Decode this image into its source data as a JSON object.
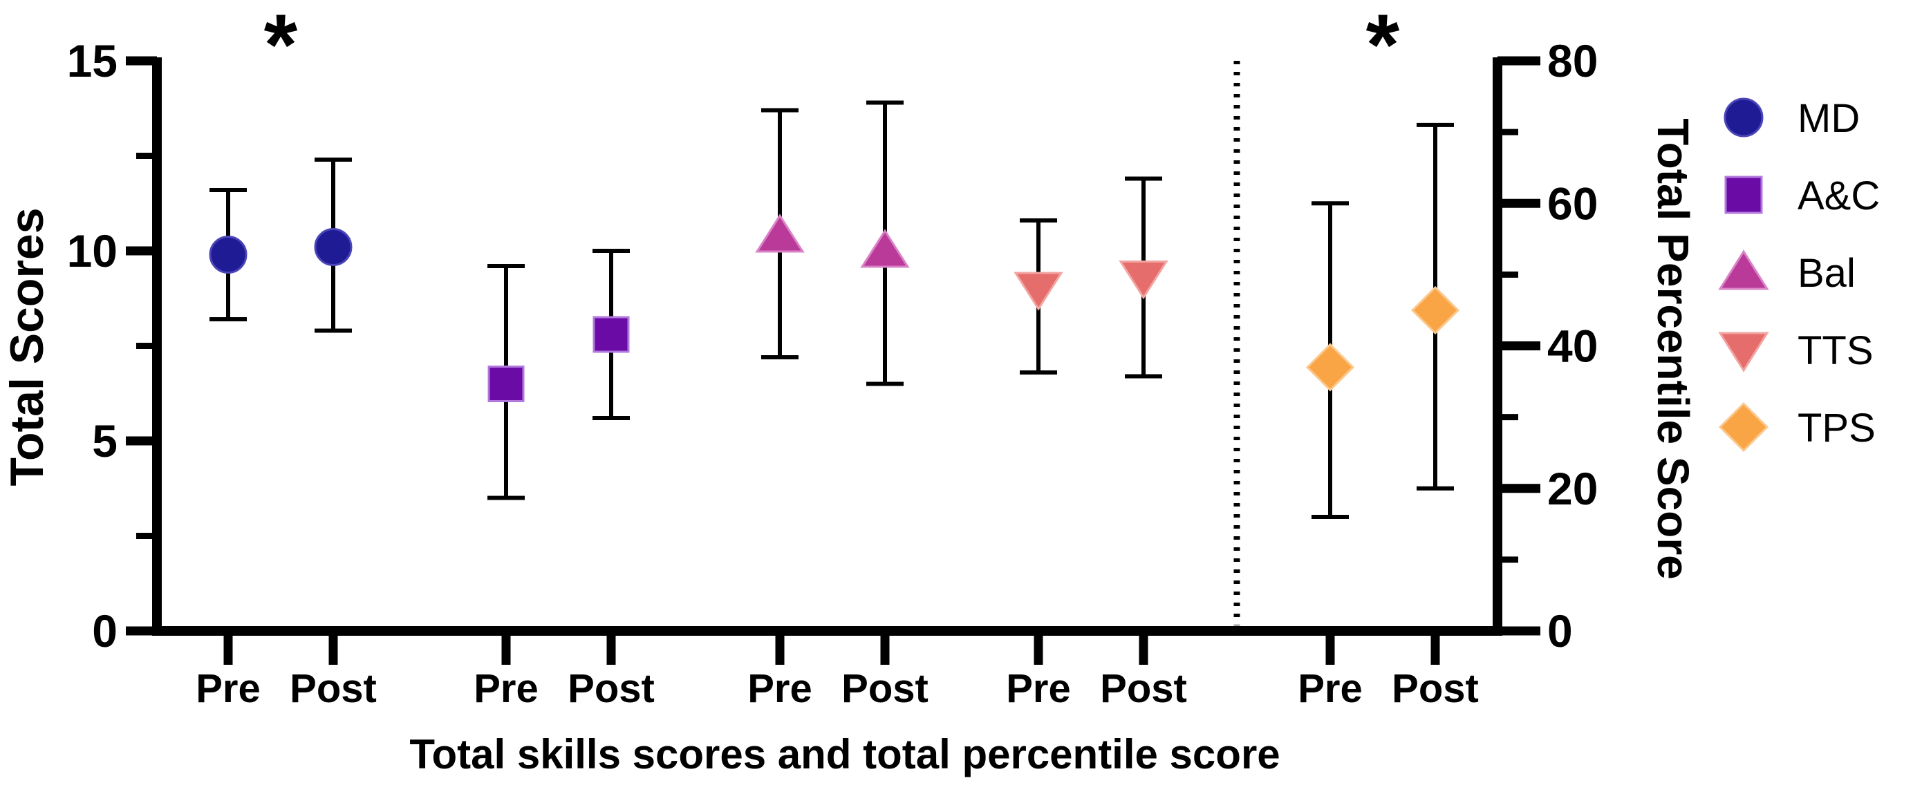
{
  "figure": {
    "background": "#ffffff",
    "axis_color": "#000000",
    "significance_symbol": "*"
  },
  "chart_data": {
    "type": "scatter",
    "title": "",
    "x_axis": {
      "title": "Total skills scores and total percentile score",
      "pair_labels": [
        "Pre",
        "Post"
      ],
      "groups": [
        "MD",
        "A&C",
        "Bal",
        "TTS",
        "TPS"
      ]
    },
    "left_axis": {
      "title": "Total Scores",
      "range": [
        0,
        15
      ],
      "major_ticks": [
        0,
        5,
        10,
        15
      ],
      "minor_ticks": [
        2.5,
        7.5,
        12.5
      ]
    },
    "right_axis": {
      "title": "Total Percentile Score",
      "range": [
        0,
        80
      ],
      "major_ticks": [
        0,
        20,
        40,
        60,
        80
      ],
      "minor_ticks": [
        10,
        30,
        50,
        70
      ]
    },
    "series": [
      {
        "name": "MD",
        "axis": "left",
        "marker": "circle",
        "color": "#1E1B95",
        "edge_color": "#4B45B8",
        "points": [
          {
            "label": "Pre",
            "mean": 9.9,
            "lo": 8.2,
            "hi": 11.6
          },
          {
            "label": "Post",
            "mean": 10.1,
            "lo": 7.9,
            "hi": 12.4
          }
        ]
      },
      {
        "name": "A&C",
        "axis": "left",
        "marker": "square",
        "color": "#6B0BA6",
        "edge_color": "#B279DD",
        "points": [
          {
            "label": "Pre",
            "mean": 6.5,
            "lo": 3.5,
            "hi": 9.6
          },
          {
            "label": "Post",
            "mean": 7.8,
            "lo": 5.6,
            "hi": 10.0
          }
        ]
      },
      {
        "name": "Bal",
        "axis": "left",
        "marker": "triangle-up",
        "color": "#BA3A99",
        "edge_color": "#DA84C7",
        "points": [
          {
            "label": "Pre",
            "mean": 10.4,
            "lo": 7.2,
            "hi": 13.7
          },
          {
            "label": "Post",
            "mean": 10.0,
            "lo": 6.5,
            "hi": 13.9
          }
        ]
      },
      {
        "name": "TTS",
        "axis": "left",
        "marker": "triangle-down",
        "color": "#E56D6B",
        "edge_color": "#F2A4A1",
        "points": [
          {
            "label": "Pre",
            "mean": 9.0,
            "lo": 6.8,
            "hi": 10.8
          },
          {
            "label": "Post",
            "mean": 9.3,
            "lo": 6.7,
            "hi": 11.9
          }
        ]
      },
      {
        "name": "TPS",
        "axis": "right",
        "marker": "diamond",
        "color": "#F9A545",
        "edge_color": "#FBC98F",
        "points": [
          {
            "label": "Pre",
            "mean": 37,
            "lo": 16,
            "hi": 60
          },
          {
            "label": "Post",
            "mean": 45,
            "lo": 20,
            "hi": 71
          }
        ]
      }
    ],
    "significance": [
      {
        "group": "MD",
        "symbol": "*"
      },
      {
        "group": "TPS",
        "symbol": "*"
      }
    ],
    "divider": {
      "after_group": "TTS",
      "style": "dotted"
    },
    "legend": {
      "entries": [
        "MD",
        "A&C",
        "Bal",
        "TTS",
        "TPS"
      ],
      "position": "right"
    }
  }
}
